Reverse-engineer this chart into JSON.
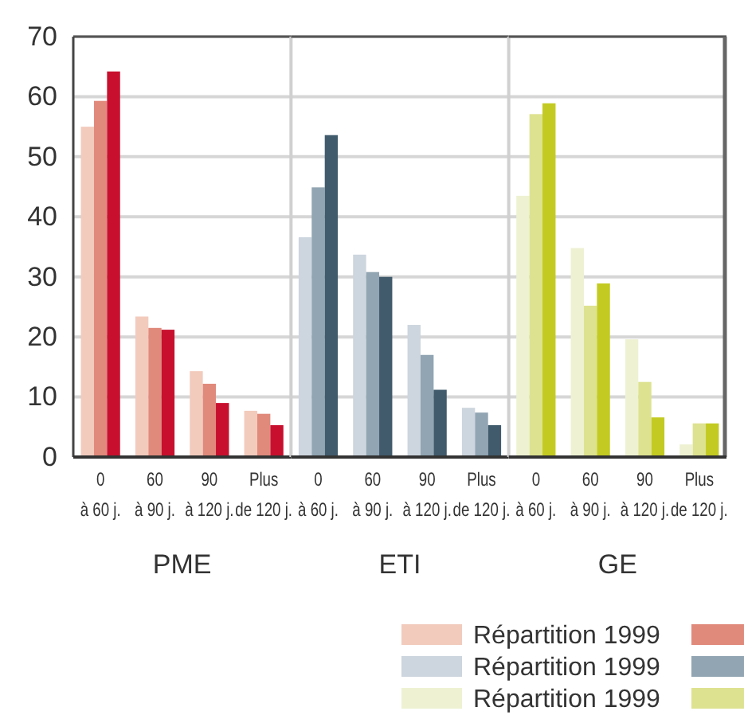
{
  "chart_data": [
    {
      "type": "bar",
      "xlabel": "PME",
      "categories": [
        "0 à 60 j.",
        "60 à 90 j.",
        "90 à 120 j.",
        "Plus de 120 j."
      ],
      "ylim": [
        0,
        70
      ],
      "yticks": [
        0,
        10,
        20,
        30,
        40,
        50,
        60,
        70
      ],
      "grid": "y",
      "legend": "bottom right",
      "series": [
        {
          "name": "Répartition 1999",
          "color": "#f2cbbd",
          "values": [
            55.0,
            23.4,
            14.3,
            7.7
          ]
        },
        {
          "color": "#e08a7c",
          "values": [
            59.3,
            21.5,
            12.2,
            7.2
          ]
        },
        {
          "color": "#c8102e",
          "values": [
            64.2,
            21.2,
            9.0,
            5.3
          ]
        }
      ]
    },
    {
      "type": "bar",
      "xlabel": "ETI",
      "categories": [
        "0 à 60 j.",
        "60 à 90 j.",
        "90 à 120 j.",
        "Plus de 120 j."
      ],
      "ylim": [
        0,
        70
      ],
      "yticks": [
        0,
        10,
        20,
        30,
        40,
        50,
        60,
        70
      ],
      "grid": "y",
      "legend": "bottom right",
      "tick_labels": "x",
      "series": [
        {
          "name": "Répartition 1999",
          "color": "#cdd5de",
          "values": [
            36.6,
            33.7,
            22.0,
            8.2
          ]
        },
        {
          "color": "#91a5b2",
          "values": [
            44.9,
            30.8,
            17.0,
            7.4
          ]
        },
        {
          "color": "#415b6d",
          "values": [
            53.6,
            30.0,
            11.2,
            5.3
          ]
        }
      ]
    },
    {
      "type": "bar",
      "xlabel": "GE",
      "categories": [
        "0 à 60 j.",
        "60 à 90 j.",
        "90 à 120 j.",
        "Plus de 120 j."
      ],
      "ylim": [
        0,
        70
      ],
      "yticks": [
        0,
        10,
        20,
        30,
        40,
        50,
        60,
        70
      ],
      "grid": "y",
      "legend": "bottom left",
      "tick_labels": "x",
      "series": [
        {
          "name": "Répartition 1999",
          "color": "#eef2d2",
          "values": [
            43.5,
            34.8,
            19.6,
            2.1
          ]
        },
        {
          "color": "#dde290",
          "values": [
            57.1,
            25.2,
            12.5,
            5.6
          ]
        },
        {
          "color": "#c3cb22",
          "values": [
            58.9,
            28.9,
            6.6,
            5.6
          ]
        }
      ]
    }
  ]
}
